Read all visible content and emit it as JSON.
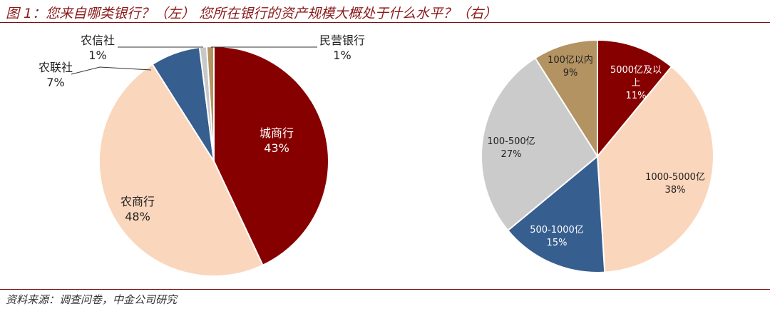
{
  "title": "图 1：您来自哪类银行？（左） 您所在银行的资产规模大概处于什么水平？（右）",
  "source": "资料来源：调查问卷，中金公司研究",
  "chart_data": [
    {
      "type": "pie",
      "slices": [
        {
          "label": "城商行",
          "value": 43,
          "value_text": "43%",
          "color": "#870000"
        },
        {
          "label": "农商行",
          "value": 48,
          "value_text": "48%",
          "color": "#fad6bc"
        },
        {
          "label": "农联社",
          "value": 7,
          "value_text": "7%",
          "color": "#365e8f"
        },
        {
          "label": "农信社",
          "value": 1,
          "value_text": "1%",
          "color": "#c8c8c8"
        },
        {
          "label": "民营银行",
          "value": 1,
          "value_text": "1%",
          "color": "#b39362"
        }
      ]
    },
    {
      "type": "pie",
      "slices": [
        {
          "label": "5000亿及以上",
          "value": 11,
          "value_text": "11%",
          "color": "#870000"
        },
        {
          "label": "1000-5000亿",
          "value": 38,
          "value_text": "38%",
          "color": "#fad6bc"
        },
        {
          "label": "500-1000亿",
          "value": 15,
          "value_text": "15%",
          "color": "#365e8f"
        },
        {
          "label": "100-500亿",
          "value": 27,
          "value_text": "27%",
          "color": "#cbcbcb"
        },
        {
          "label": "100亿以内",
          "value": 9,
          "value_text": "9%",
          "color": "#b39362"
        }
      ]
    }
  ]
}
